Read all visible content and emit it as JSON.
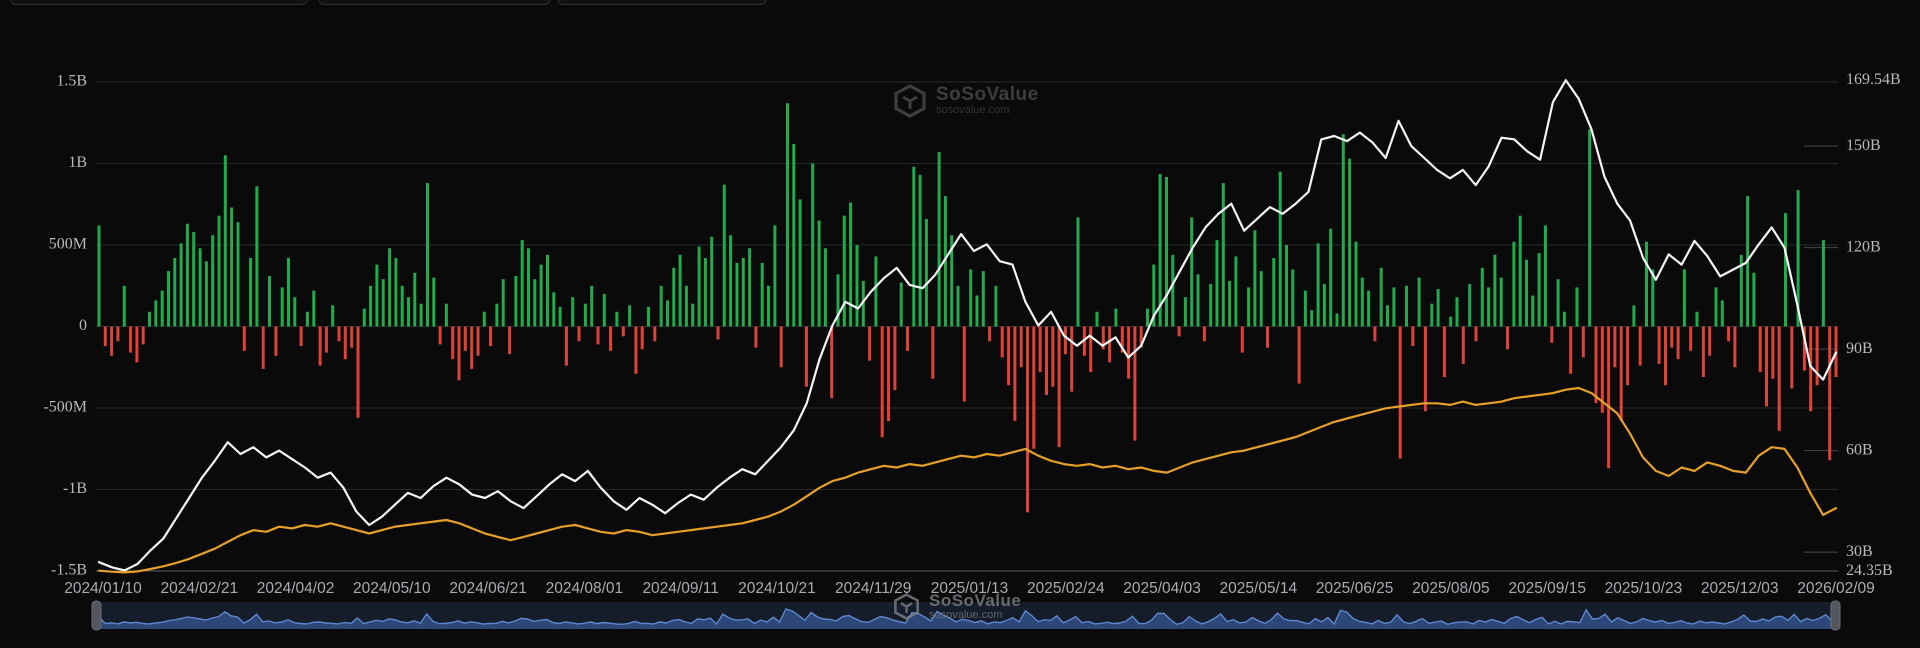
{
  "watermark": {
    "brand": "SoSoValue",
    "domain": "sosovalue.com"
  },
  "colors": {
    "background": "#0a0a0b",
    "bar_positive": "#21ab4d",
    "bar_negative": "#df4238",
    "line_white": "#f5f5f5",
    "line_orange": "#e6a028",
    "gridline": "#27292c",
    "axis_line": "#595d61",
    "tick_dash": "#43474c",
    "axis_label": "#b6babe",
    "date_label": "#a8acb1",
    "nav_band_bg": "#161d2a",
    "nav_area_fill": "#2c4778",
    "nav_line": "#5d87cf",
    "nav_handle": "#53565c"
  },
  "chart_data": {
    "type": "combo",
    "title": "",
    "legend": "none",
    "grid": "horizontal",
    "x_axis": {
      "start": "2024/01/10",
      "end": "2026/02/09",
      "labels": [
        "2024/01/10",
        "2024/02/21",
        "2024/04/02",
        "2024/05/10",
        "2024/06/21",
        "2024/08/01",
        "2024/09/11",
        "2024/10/21",
        "2024/11/29",
        "2025/01/13",
        "2025/02/24",
        "2025/04/03",
        "2025/05/14",
        "2025/06/25",
        "2025/08/05",
        "2025/09/15",
        "2025/10/23",
        "2025/12/03",
        "2026/02/09"
      ]
    },
    "y_axis_left": {
      "labels": [
        "1.5B",
        "1B",
        "500M",
        "0",
        "-500M",
        "-1B",
        "-1.5B"
      ],
      "values_m": [
        1500,
        1000,
        500,
        0,
        -500,
        -1000,
        -1500
      ],
      "min_m": -1500,
      "max_m": 1500
    },
    "y_axis_right": {
      "labels": [
        "169.54B",
        "150B",
        "120B",
        "90B",
        "60B",
        "30B",
        "24.35B"
      ],
      "values_b": [
        169.54,
        150,
        120,
        90,
        60,
        30,
        24.35
      ],
      "min_b": 24.35,
      "max_b": 169.54
    },
    "bar_series": {
      "name": "daily-net-flow",
      "unit": "USD millions",
      "axis": "left",
      "values": [
        620,
        -120,
        -180,
        -90,
        250,
        -160,
        -220,
        -110,
        90,
        160,
        220,
        340,
        420,
        510,
        630,
        580,
        480,
        400,
        560,
        680,
        1050,
        730,
        640,
        -150,
        420,
        860,
        -260,
        310,
        -180,
        240,
        420,
        180,
        -120,
        90,
        220,
        -240,
        -160,
        130,
        -90,
        -200,
        -130,
        -560,
        110,
        250,
        380,
        290,
        480,
        420,
        250,
        180,
        330,
        140,
        880,
        300,
        -110,
        140,
        -200,
        -330,
        -150,
        -260,
        -180,
        90,
        -120,
        140,
        290,
        -170,
        310,
        530,
        480,
        290,
        380,
        440,
        210,
        120,
        -240,
        180,
        -90,
        140,
        250,
        -110,
        200,
        -150,
        90,
        -60,
        130,
        -290,
        -140,
        120,
        -90,
        250,
        160,
        360,
        440,
        250,
        140,
        490,
        420,
        550,
        -80,
        870,
        560,
        390,
        420,
        480,
        -130,
        390,
        250,
        620,
        -250,
        1370,
        1120,
        780,
        -370,
        1000,
        650,
        480,
        -440,
        320,
        680,
        760,
        500,
        280,
        -210,
        430,
        -680,
        -580,
        -390,
        270,
        -150,
        980,
        930,
        660,
        -320,
        1070,
        800,
        560,
        250,
        -460,
        350,
        190,
        340,
        -90,
        250,
        -190,
        -360,
        -580,
        -250,
        -1140,
        -750,
        -280,
        -420,
        -370,
        -740,
        -170,
        -400,
        670,
        -180,
        -280,
        90,
        -140,
        -220,
        110,
        -160,
        -320,
        -700,
        -130,
        110,
        380,
        936,
        917,
        440,
        -60,
        180,
        670,
        320,
        -90,
        260,
        530,
        880,
        280,
        430,
        -160,
        240,
        590,
        340,
        -130,
        420,
        950,
        500,
        350,
        -350,
        220,
        100,
        510,
        260,
        600,
        80,
        1180,
        1030,
        520,
        300,
        220,
        -90,
        360,
        130,
        240,
        -810,
        250,
        -120,
        300,
        -520,
        140,
        230,
        -310,
        60,
        180,
        -230,
        260,
        -90,
        360,
        240,
        440,
        300,
        -140,
        520,
        680,
        410,
        190,
        450,
        620,
        -100,
        290,
        90,
        -290,
        240,
        -190,
        1210,
        -470,
        -530,
        -870,
        -250,
        -580,
        -360,
        130,
        -240,
        520,
        350,
        -230,
        -360,
        -130,
        -200,
        350,
        -150,
        90,
        -310,
        -180,
        240,
        160,
        -90,
        -250,
        440,
        800,
        330,
        -280,
        -490,
        -320,
        -640,
        696,
        -380,
        837,
        -270,
        -520,
        -360,
        530,
        -820,
        -310
      ]
    },
    "line_series": [
      {
        "name": "white-line",
        "axis": "right",
        "unit": "USD billions",
        "values": [
          27,
          25.5,
          24.6,
          26.5,
          30.5,
          34,
          40,
          46,
          52,
          57,
          62.5,
          59,
          61,
          58,
          60,
          57.5,
          55,
          52,
          53.5,
          49,
          42,
          38,
          40.5,
          44,
          47.5,
          46,
          49.5,
          52,
          50,
          47,
          46,
          48,
          45,
          43,
          46.5,
          50,
          53,
          51,
          54,
          49,
          45,
          42.5,
          46,
          44,
          41.5,
          44.5,
          47,
          45.5,
          49,
          52,
          54.5,
          53,
          57,
          61,
          66,
          74,
          87,
          97,
          104,
          102,
          107,
          111,
          114,
          109,
          108,
          112,
          118,
          124,
          119,
          121,
          116,
          115,
          104,
          97,
          101,
          94,
          91,
          94,
          91,
          93.5,
          87.5,
          91,
          100,
          106,
          113,
          120,
          126,
          130,
          133,
          125,
          128.5,
          132,
          130,
          133,
          136.5,
          152,
          153,
          151.5,
          154,
          151,
          146.5,
          157.5,
          150,
          146.5,
          143,
          140.5,
          143,
          138.5,
          144,
          152.5,
          152,
          148.5,
          146,
          163,
          169.5,
          164,
          155,
          141,
          133,
          128,
          117,
          110.5,
          118,
          115,
          122,
          117.5,
          111.5,
          113.5,
          115.5,
          121,
          126,
          120,
          103,
          85,
          81,
          89
        ]
      },
      {
        "name": "orange-line",
        "axis": "right",
        "unit": "USD billions",
        "values": [
          24.5,
          24.2,
          24,
          24.3,
          25,
          25.8,
          26.8,
          28,
          29.5,
          31,
          33,
          35,
          36.5,
          36,
          37.5,
          37,
          38,
          37.5,
          38.5,
          37.5,
          36.5,
          35.5,
          36.5,
          37.5,
          38,
          38.5,
          39,
          39.5,
          38.5,
          37,
          35.5,
          34.5,
          33.5,
          34.5,
          35.5,
          36.5,
          37.5,
          38,
          37,
          36,
          35.5,
          36.5,
          36,
          35,
          35.5,
          36,
          36.5,
          37,
          37.5,
          38,
          38.5,
          39.5,
          40.5,
          42,
          44,
          46.5,
          49,
          51,
          52,
          53.5,
          54.5,
          55.5,
          55,
          56,
          55.5,
          56.5,
          57.5,
          58.5,
          58,
          59,
          58.5,
          59.5,
          60.5,
          58.5,
          57,
          56,
          55.5,
          56,
          55,
          55.5,
          54.5,
          55,
          54,
          53.5,
          55,
          56.5,
          57.5,
          58.5,
          59.5,
          60,
          61,
          62,
          63,
          64,
          65.5,
          67,
          68.5,
          69.5,
          70.5,
          71.5,
          72.5,
          73,
          73.5,
          74,
          74,
          73.5,
          74.5,
          73.5,
          74,
          74.5,
          75.5,
          76,
          76.5,
          77,
          78,
          78.5,
          77,
          74,
          71,
          65,
          58,
          54,
          52.5,
          55,
          54,
          56.5,
          55.5,
          54,
          53.5,
          58.5,
          61,
          60.5,
          55,
          47.5,
          41,
          43
        ]
      }
    ]
  },
  "navigator": {
    "range_start": "2024/01/10",
    "range_end": "2026/02/09",
    "selection": "full"
  }
}
